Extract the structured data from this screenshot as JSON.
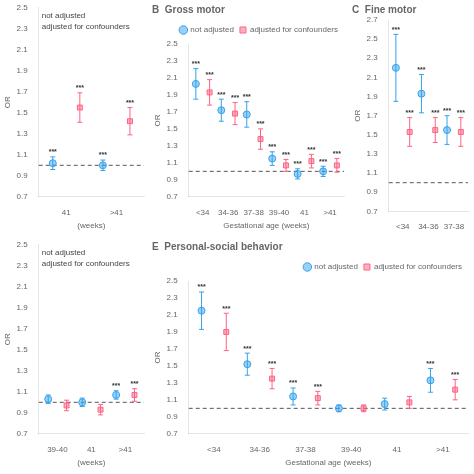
{
  "chart_data": [
    {
      "type": "scatter",
      "categories": [
        "41",
        ">41"
      ],
      "x_label": "(weeks)",
      "y_label": "OR",
      "annotations": [
        "not adjusted",
        "adjusted for confounders"
      ],
      "series": [
        {
          "marker": "circle",
          "values": [
            1.02,
            1.0
          ],
          "error": [
            0.06,
            0.05
          ],
          "point_labels": [
            "***",
            "***"
          ]
        },
        {
          "marker": "square",
          "values": [
            1.55,
            1.42
          ],
          "error": [
            0.14,
            0.13
          ],
          "point_labels": [
            "***",
            "***"
          ]
        }
      ],
      "hline": 1.0,
      "ylim": [
        0.7,
        2.5
      ],
      "yticks": [
        0.7,
        0.9,
        1.1,
        1.3,
        1.5,
        1.7,
        1.9,
        2.1,
        2.3,
        2.5
      ],
      "grid": false
    },
    {
      "type": "scatter",
      "title": "B  Gross motor",
      "categories": [
        "<34",
        "34-36",
        "37-38",
        "39-40",
        "41",
        ">41"
      ],
      "x_label": "Gestational age (weeks)",
      "y_label": "OR",
      "legend": "upper right",
      "series": [
        {
          "name": "not adjusted",
          "marker": "circle",
          "values": [
            2.03,
            1.72,
            1.67,
            1.15,
            0.97,
            1.0
          ],
          "error": [
            0.18,
            0.13,
            0.15,
            0.08,
            0.06,
            0.06
          ],
          "point_labels": [
            "***",
            "***",
            "***",
            "***",
            "***",
            "***"
          ]
        },
        {
          "name": "adjusted for confounders",
          "marker": "square",
          "values": [
            1.93,
            1.68,
            1.38,
            1.07,
            1.12,
            1.07
          ],
          "error": [
            0.15,
            0.13,
            0.12,
            0.07,
            0.08,
            0.08
          ],
          "point_labels": [
            "***",
            "***",
            "***",
            "***",
            "***",
            "***"
          ]
        }
      ],
      "hline": 1.0,
      "ylim": [
        0.7,
        2.5
      ],
      "yticks": [
        0.7,
        0.9,
        1.1,
        1.3,
        1.5,
        1.7,
        1.9,
        2.1,
        2.3,
        2.5
      ],
      "grid": false
    },
    {
      "type": "scatter",
      "title": "C  Fine motor",
      "categories": [
        "<34",
        "34-36",
        "37-38"
      ],
      "y_label": "OR",
      "series": [
        {
          "marker": "circle",
          "values": [
            2.2,
            1.93,
            1.55
          ],
          "error": [
            0.35,
            0.2,
            0.15
          ],
          "point_labels": [
            "***",
            "***",
            "***"
          ]
        },
        {
          "marker": "square",
          "values": [
            1.53,
            1.55,
            1.53
          ],
          "error": [
            0.15,
            0.13,
            0.15
          ],
          "point_labels": [
            "***",
            "***",
            "***"
          ]
        }
      ],
      "hline": 1.0,
      "ylim": [
        0.7,
        2.7
      ],
      "yticks": [
        0.7,
        0.9,
        1.1,
        1.3,
        1.5,
        1.7,
        1.9,
        2.1,
        2.3,
        2.5,
        2.7
      ],
      "grid": false
    },
    {
      "type": "scatter",
      "categories": [
        "39-40",
        "41",
        ">41"
      ],
      "x_label": "(weeks)",
      "y_label": "OR",
      "annotations": [
        "not adjusted",
        "adjusted for confounders"
      ],
      "series": [
        {
          "marker": "circle",
          "values": [
            1.03,
            1.0,
            1.07
          ],
          "error": [
            0.04,
            0.04,
            0.04
          ],
          "point_labels": [
            null,
            null,
            "***"
          ]
        },
        {
          "marker": "square",
          "values": [
            0.97,
            0.93,
            1.07
          ],
          "error": [
            0.05,
            0.05,
            0.06
          ],
          "point_labels": [
            null,
            null,
            "***"
          ]
        }
      ],
      "hline": 1.0,
      "ylim": [
        0.7,
        2.5
      ],
      "yticks": [
        0.7,
        0.9,
        1.1,
        1.3,
        1.5,
        1.7,
        1.9,
        2.1,
        2.3,
        2.5
      ],
      "grid": false
    },
    {
      "type": "scatter",
      "title": "E  Personal-social behavior",
      "categories": [
        "<34",
        "34-36",
        "37-38",
        "39-40",
        "41",
        ">41"
      ],
      "x_label": "Gestational age (weeks)",
      "y_label": "OR",
      "legend": "upper right",
      "series": [
        {
          "name": "not adjusted",
          "marker": "circle",
          "values": [
            2.15,
            1.52,
            1.14,
            1.0,
            1.05,
            1.33
          ],
          "error": [
            0.22,
            0.13,
            0.1,
            0.04,
            0.07,
            0.14
          ],
          "point_labels": [
            "***",
            "***",
            "***",
            null,
            null,
            "***"
          ]
        },
        {
          "name": "adjusted for confounders",
          "marker": "square",
          "values": [
            1.9,
            1.35,
            1.12,
            1.0,
            1.07,
            1.22
          ],
          "error": [
            0.22,
            0.12,
            0.08,
            0.04,
            0.07,
            0.12
          ],
          "point_labels": [
            "***",
            "***",
            "***",
            null,
            null,
            "***"
          ]
        }
      ],
      "hline": 1.0,
      "ylim": [
        0.7,
        2.5
      ],
      "yticks": [
        0.7,
        0.9,
        1.1,
        1.3,
        1.5,
        1.7,
        1.9,
        2.1,
        2.3,
        2.5
      ],
      "grid": false
    }
  ]
}
